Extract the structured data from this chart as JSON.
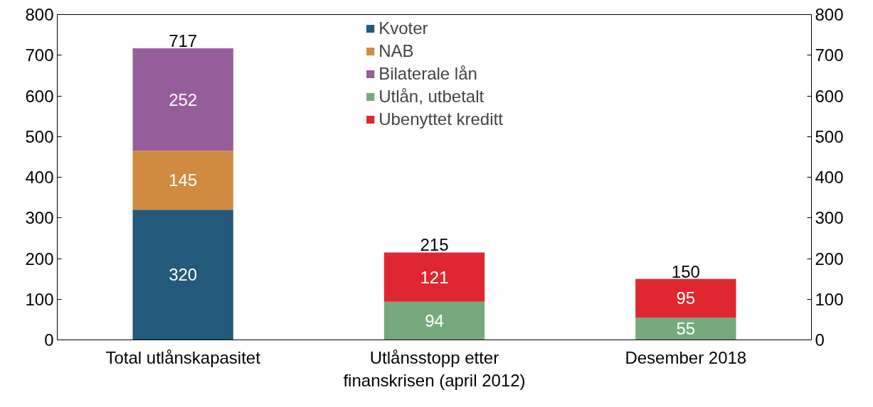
{
  "chart_data": {
    "type": "bar",
    "stacked": true,
    "categories": [
      "Total utlånskapasitet",
      "Utlånsstopp etter finanskrisen (april 2012)",
      "Desember 2018"
    ],
    "series": [
      {
        "name": "Kvoter",
        "color": "#23597a",
        "values": [
          320,
          null,
          null
        ]
      },
      {
        "name": "NAB",
        "color": "#d08b40",
        "values": [
          145,
          null,
          null
        ]
      },
      {
        "name": "Bilaterale lån",
        "color": "#955d9a",
        "values": [
          252,
          null,
          null
        ]
      },
      {
        "name": "Utlån, utbetalt",
        "color": "#78a97d",
        "values": [
          null,
          94,
          55
        ]
      },
      {
        "name": "Ubenyttet kreditt",
        "color": "#e0262f",
        "values": [
          null,
          121,
          95
        ]
      }
    ],
    "data_labels": true,
    "totals": [
      "717",
      "215",
      "150"
    ],
    "ylim": [
      0,
      800
    ],
    "yticks": [
      0,
      100,
      200,
      300,
      400,
      500,
      600,
      700,
      800
    ],
    "y2lim": [
      0,
      800
    ],
    "y2ticks": [
      0,
      100,
      200,
      300,
      400,
      500,
      600,
      700,
      800
    ],
    "grid": false,
    "legend": "top"
  }
}
